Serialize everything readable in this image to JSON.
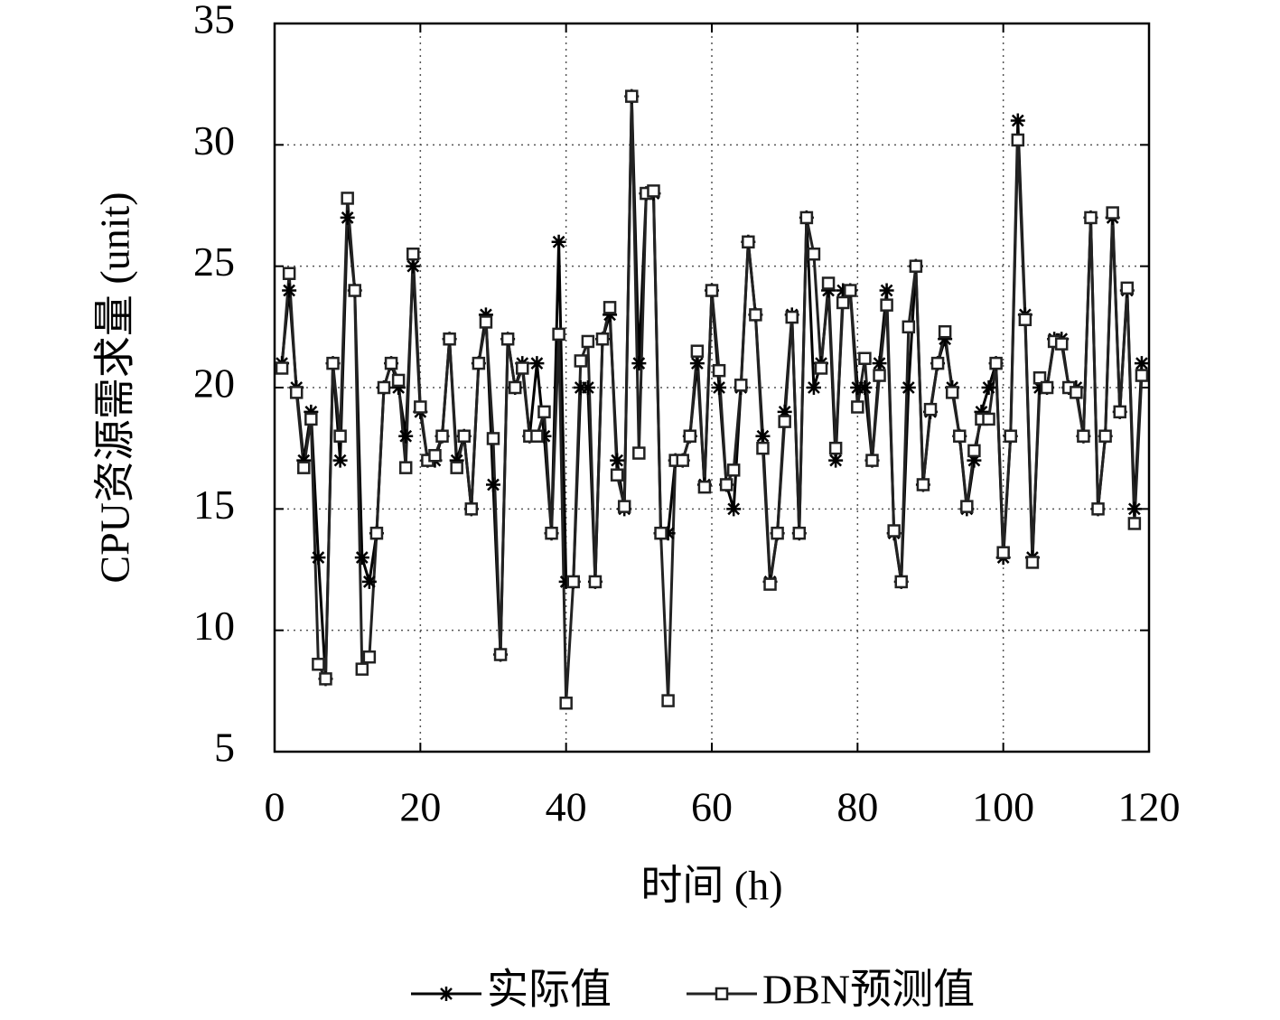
{
  "chart_data": {
    "type": "line",
    "x_label": "时间 (h)",
    "y_label": "CPU资源需求量 (unit)",
    "x": [
      1,
      2,
      3,
      4,
      5,
      6,
      7,
      8,
      9,
      10,
      11,
      12,
      13,
      14,
      15,
      16,
      17,
      18,
      19,
      20,
      21,
      22,
      23,
      24,
      25,
      26,
      27,
      28,
      29,
      30,
      31,
      32,
      33,
      34,
      35,
      36,
      37,
      38,
      39,
      40,
      41,
      42,
      43,
      44,
      45,
      46,
      47,
      48,
      49,
      50,
      51,
      52,
      53,
      54,
      55,
      56,
      57,
      58,
      59,
      60,
      61,
      62,
      63,
      64,
      65,
      66,
      67,
      68,
      69,
      70,
      71,
      72,
      73,
      74,
      75,
      76,
      77,
      78,
      79,
      80,
      81,
      82,
      83,
      84,
      85,
      86,
      87,
      88,
      89,
      90,
      91,
      92,
      93,
      94,
      95,
      96,
      97,
      98,
      99,
      100,
      101,
      102,
      103,
      104,
      105,
      106,
      107,
      108,
      109,
      110,
      111,
      112,
      113,
      114,
      115,
      116,
      117,
      118,
      119
    ],
    "series": [
      {
        "name": "实际值",
        "color": "#000000",
        "marker": "star",
        "values": [
          21,
          24,
          20,
          17,
          19,
          13,
          8,
          21,
          17,
          27,
          24,
          13,
          12,
          14,
          20,
          21,
          20,
          18,
          25,
          19,
          17,
          17,
          18,
          22,
          17,
          18,
          15,
          21,
          23,
          16,
          9,
          22,
          20,
          21,
          18,
          21,
          18,
          14,
          26,
          12,
          12,
          20,
          20,
          12,
          22,
          23,
          17,
          15,
          32,
          21,
          28,
          28,
          14,
          14,
          17,
          17,
          18,
          21,
          16,
          24,
          20,
          16,
          15,
          20,
          26,
          23,
          18,
          12,
          14,
          19,
          23,
          14,
          27,
          20,
          21,
          24,
          17,
          24,
          24,
          20,
          20,
          17,
          21,
          24,
          14,
          12,
          20,
          25,
          16,
          19,
          21,
          22,
          20,
          18,
          15,
          17,
          19,
          20,
          21,
          13,
          18,
          31,
          23,
          13,
          20,
          20,
          22,
          22,
          20,
          20,
          18,
          27,
          15,
          18,
          27,
          19,
          24,
          15,
          21
        ]
      },
      {
        "name": "DBN预测值",
        "color": "#222222",
        "marker": "square",
        "values": [
          20.8,
          24.7,
          19.8,
          16.7,
          18.7,
          8.6,
          8,
          21,
          18,
          27.8,
          24,
          8.4,
          8.9,
          14,
          20,
          21,
          20.3,
          16.7,
          25.5,
          19.2,
          17,
          17.2,
          18,
          22,
          16.7,
          18,
          15,
          21,
          22.7,
          17.9,
          9,
          22,
          20,
          20.8,
          18,
          18,
          19,
          14,
          22.2,
          7,
          12,
          21.1,
          21.9,
          12,
          22,
          23.3,
          16.4,
          15.1,
          32,
          17.3,
          28,
          28.1,
          14,
          7.1,
          17,
          17,
          18,
          21.5,
          15.9,
          24,
          20.7,
          16,
          16.6,
          20.1,
          26,
          23,
          17.5,
          11.9,
          14,
          18.6,
          22.9,
          14,
          27,
          25.5,
          20.8,
          24.3,
          17.5,
          23.5,
          24,
          19.2,
          21.2,
          17,
          20.5,
          23.4,
          14.1,
          12,
          22.5,
          25,
          16,
          19.1,
          21,
          22.3,
          19.8,
          18,
          15.1,
          17.4,
          18.7,
          18.7,
          21,
          13.2,
          18,
          30.2,
          22.8,
          12.8,
          20.4,
          20,
          21.9,
          21.8,
          20,
          19.8,
          18,
          27,
          15,
          18,
          27.2,
          19,
          24.1,
          14.4,
          20.5
        ]
      }
    ],
    "xlim": [
      0,
      120
    ],
    "xticks": [
      0,
      20,
      40,
      60,
      80,
      100,
      120
    ],
    "ylim": [
      5,
      35
    ],
    "yticks": [
      5,
      10,
      15,
      20,
      25,
      30,
      35
    ],
    "grid": true,
    "legend": "bottom"
  }
}
